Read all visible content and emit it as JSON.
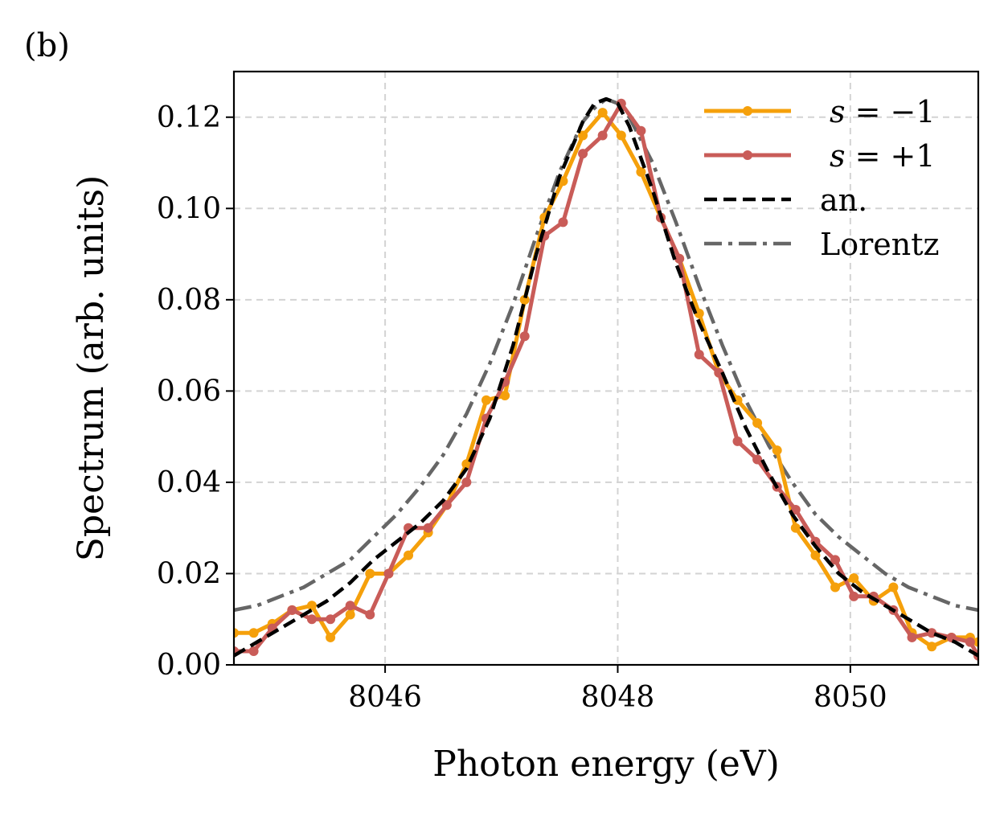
{
  "chart_data": {
    "type": "line",
    "panel_label": "(b)",
    "xlabel": "Photon energy (eV)",
    "ylabel": "Spectrum (arb. units)",
    "xlim": [
      8044.7,
      8051.1
    ],
    "ylim": [
      0.0,
      0.13
    ],
    "xticks": [
      8046,
      8048,
      8050
    ],
    "xtick_labels": [
      "8046",
      "8048",
      "8050"
    ],
    "yticks": [
      0.0,
      0.02,
      0.04,
      0.06,
      0.08,
      0.1,
      0.12
    ],
    "ytick_labels": [
      "0.00",
      "0.02",
      "0.04",
      "0.06",
      "0.08",
      "0.10",
      "0.12"
    ],
    "grid": true,
    "legend_position": "top-right",
    "legend": [
      {
        "label": "s = −1",
        "label_var": "s",
        "label_rest": " = −1",
        "style": "solid-marker",
        "color": "#F5A00B"
      },
      {
        "label": "s = +1",
        "label_var": "s",
        "label_rest": " = +1",
        "style": "solid-marker",
        "color": "#C95C58"
      },
      {
        "label": "an.",
        "style": "dashed",
        "color": "#000000"
      },
      {
        "label": "Lorentz",
        "style": "dashdot",
        "color": "#666666"
      }
    ],
    "series": [
      {
        "name": "s = −1",
        "color": "#F5A00B",
        "x": [
          8044.7,
          8044.87,
          8045.03,
          8045.2,
          8045.37,
          8045.53,
          8045.7,
          8045.87,
          8046.03,
          8046.2,
          8046.37,
          8046.53,
          8046.7,
          8046.87,
          8047.03,
          8047.2,
          8047.37,
          8047.53,
          8047.7,
          8047.87,
          8048.03,
          8048.2,
          8048.37,
          8048.53,
          8048.7,
          8048.87,
          8049.03,
          8049.2,
          8049.37,
          8049.53,
          8049.7,
          8049.87,
          8050.03,
          8050.2,
          8050.37,
          8050.53,
          8050.7,
          8050.87,
          8051.03,
          8051.1
        ],
        "y": [
          0.007,
          0.007,
          0.009,
          0.012,
          0.013,
          0.006,
          0.011,
          0.02,
          0.02,
          0.024,
          0.029,
          0.035,
          0.044,
          0.058,
          0.059,
          0.08,
          0.098,
          0.106,
          0.116,
          0.121,
          0.116,
          0.108,
          0.098,
          0.089,
          0.077,
          0.064,
          0.058,
          0.053,
          0.047,
          0.03,
          0.024,
          0.017,
          0.019,
          0.014,
          0.017,
          0.007,
          0.004,
          0.006,
          0.006,
          0.005
        ]
      },
      {
        "name": "s = +1",
        "color": "#C95C58",
        "x": [
          8044.7,
          8044.87,
          8045.03,
          8045.2,
          8045.37,
          8045.53,
          8045.7,
          8045.87,
          8046.03,
          8046.2,
          8046.37,
          8046.53,
          8046.7,
          8046.87,
          8047.03,
          8047.2,
          8047.37,
          8047.53,
          8047.7,
          8047.87,
          8048.03,
          8048.2,
          8048.37,
          8048.53,
          8048.7,
          8048.87,
          8049.03,
          8049.2,
          8049.37,
          8049.53,
          8049.7,
          8049.87,
          8050.03,
          8050.2,
          8050.37,
          8050.53,
          8050.7,
          8050.87,
          8051.03,
          8051.1
        ],
        "y": [
          0.003,
          0.003,
          0.008,
          0.012,
          0.01,
          0.01,
          0.013,
          0.011,
          0.02,
          0.03,
          0.03,
          0.035,
          0.04,
          0.054,
          0.062,
          0.072,
          0.094,
          0.097,
          0.112,
          0.116,
          0.123,
          0.117,
          0.098,
          0.089,
          0.068,
          0.064,
          0.049,
          0.045,
          0.039,
          0.034,
          0.027,
          0.023,
          0.015,
          0.015,
          0.012,
          0.006,
          0.007,
          0.006,
          0.005,
          0.002
        ]
      },
      {
        "name": "an.",
        "color": "#000000",
        "x": [
          8044.7,
          8044.9,
          8045.1,
          8045.3,
          8045.5,
          8045.7,
          8045.9,
          8046.1,
          8046.3,
          8046.5,
          8046.7,
          8046.9,
          8047.1,
          8047.3,
          8047.5,
          8047.7,
          8047.8,
          8047.9,
          8048.0,
          8048.1,
          8048.3,
          8048.5,
          8048.7,
          8048.9,
          8049.1,
          8049.3,
          8049.5,
          8049.7,
          8049.9,
          8050.1,
          8050.3,
          8050.5,
          8050.7,
          8050.9,
          8051.1
        ],
        "y": [
          0.002,
          0.005,
          0.008,
          0.011,
          0.014,
          0.018,
          0.023,
          0.027,
          0.031,
          0.036,
          0.043,
          0.054,
          0.07,
          0.09,
          0.107,
          0.119,
          0.123,
          0.124,
          0.123,
          0.118,
          0.104,
          0.088,
          0.075,
          0.064,
          0.052,
          0.042,
          0.033,
          0.026,
          0.02,
          0.016,
          0.013,
          0.01,
          0.007,
          0.005,
          0.002
        ]
      },
      {
        "name": "Lorentz",
        "color": "#666666",
        "x": [
          8044.7,
          8044.9,
          8045.1,
          8045.3,
          8045.5,
          8045.7,
          8045.9,
          8046.1,
          8046.3,
          8046.5,
          8046.7,
          8046.9,
          8047.1,
          8047.3,
          8047.5,
          8047.7,
          8047.8,
          8047.9,
          8048.0,
          8048.1,
          8048.3,
          8048.5,
          8048.7,
          8048.9,
          8049.1,
          8049.3,
          8049.5,
          8049.7,
          8049.9,
          8050.1,
          8050.3,
          8050.5,
          8050.7,
          8050.9,
          8051.1
        ],
        "y": [
          0.012,
          0.013,
          0.015,
          0.017,
          0.02,
          0.023,
          0.028,
          0.033,
          0.039,
          0.046,
          0.055,
          0.066,
          0.079,
          0.094,
          0.108,
          0.119,
          0.122,
          0.124,
          0.123,
          0.12,
          0.11,
          0.097,
          0.083,
          0.07,
          0.058,
          0.048,
          0.04,
          0.033,
          0.028,
          0.024,
          0.02,
          0.017,
          0.015,
          0.013,
          0.012
        ]
      }
    ]
  }
}
